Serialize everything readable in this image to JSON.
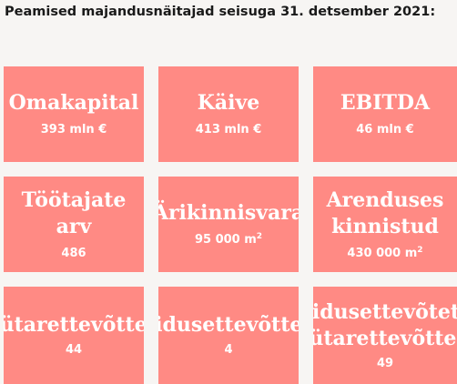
{
  "heading": "Peamised majandusnäitajad seisuga 31. detsember 2021:",
  "colors": {
    "card_bg": "#ff8a84",
    "card_text": "#ffffff",
    "page_bg": "#f7f5f3"
  },
  "cards": [
    {
      "title": "Omakapital",
      "value": "393 mln €",
      "unit_sup": ""
    },
    {
      "title": "Käive",
      "value": "413 mln €",
      "unit_sup": ""
    },
    {
      "title": "EBITDA",
      "value": "46 mln €",
      "unit_sup": ""
    },
    {
      "title_line1": "Töötajate",
      "title_line2": "arv",
      "value": "486",
      "unit_sup": ""
    },
    {
      "title": "Ärikinnisvara",
      "value": "95 000 m",
      "unit_sup": "2"
    },
    {
      "title_line1": "Arenduses",
      "title_line2": "kinnistud",
      "value": "430 000 m",
      "unit_sup": "2"
    },
    {
      "title": "Tütarettevõtted",
      "value": "44",
      "unit_sup": ""
    },
    {
      "title": "Sidusettevõtted",
      "value": "4",
      "unit_sup": ""
    },
    {
      "title_line1": "Sidusettevõtete",
      "title_line2": "tütarettevõtted",
      "value": "49",
      "unit_sup": ""
    }
  ]
}
